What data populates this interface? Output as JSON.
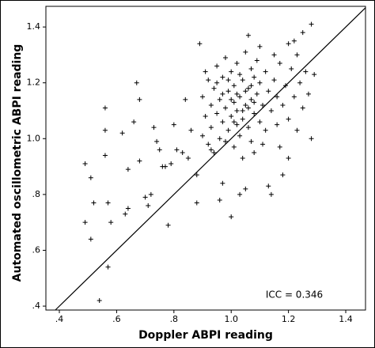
{
  "chart_data": {
    "type": "scatter",
    "x_label": "Doppler ABPI reading",
    "y_label": "Automated oscillometric ABPI reading",
    "annotation": "ICC = 0.346",
    "color": "#000000",
    "identity_line": true,
    "xlim": [
      0.353,
      1.469
    ],
    "ylim": [
      0.386,
      1.474
    ],
    "xticks": [
      {
        "value": 0.4,
        "label": ".4"
      },
      {
        "value": 0.6,
        "label": ".6"
      },
      {
        "value": 0.8,
        "label": ".8"
      },
      {
        "value": 1.0,
        "label": "1.0"
      },
      {
        "value": 1.2,
        "label": "1.2"
      },
      {
        "value": 1.4,
        "label": "1.4"
      }
    ],
    "yticks": [
      {
        "value": 0.4,
        "label": ".4"
      },
      {
        "value": 0.6,
        "label": ".6"
      },
      {
        "value": 0.8,
        "label": ".8"
      },
      {
        "value": 1.0,
        "label": "1.0"
      },
      {
        "value": 1.2,
        "label": "1.2"
      },
      {
        "value": 1.4,
        "label": "1.4"
      }
    ],
    "x": [
      0.49,
      0.49,
      0.51,
      0.51,
      0.52,
      0.54,
      0.56,
      0.56,
      0.56,
      0.57,
      0.57,
      0.58,
      0.62,
      0.63,
      0.64,
      0.64,
      0.66,
      0.67,
      0.68,
      0.68,
      0.7,
      0.71,
      0.72,
      0.73,
      0.74,
      0.75,
      0.76,
      0.77,
      0.78,
      0.79,
      0.8,
      0.81,
      0.83,
      0.84,
      0.85,
      0.86,
      0.88,
      0.88,
      0.89,
      0.9,
      0.9,
      0.91,
      0.92,
      0.92,
      0.93,
      0.93,
      0.94,
      0.94,
      0.95,
      0.95,
      0.96,
      0.96,
      0.96,
      0.97,
      0.97,
      0.97,
      0.98,
      0.98,
      0.98,
      0.99,
      0.99,
      1.0,
      1.0,
      1.0,
      1.01,
      1.01,
      1.01,
      1.02,
      1.02,
      1.02,
      1.03,
      1.03,
      1.03,
      1.04,
      1.04,
      1.04,
      1.05,
      1.05,
      1.05,
      1.06,
      1.06,
      1.06,
      1.07,
      1.07,
      1.07,
      1.08,
      1.08,
      1.08,
      1.09,
      1.09,
      1.1,
      1.1,
      1.1,
      1.11,
      1.11,
      1.12,
      1.12,
      1.13,
      1.13,
      1.14,
      1.14,
      1.15,
      1.15,
      1.16,
      1.16,
      1.17,
      1.17,
      1.18,
      1.18,
      1.19,
      1.2,
      1.2,
      1.2,
      1.21,
      1.22,
      1.22,
      1.23,
      1.23,
      1.24,
      1.25,
      1.25,
      1.26,
      1.27,
      1.28,
      1.28,
      1.29,
      0.91,
      0.93,
      0.95,
      0.97,
      0.99,
      1.0,
      1.01,
      1.02,
      1.03,
      1.04,
      1.05,
      1.06,
      1.07,
      1.08
    ],
    "y": [
      0.91,
      0.7,
      0.64,
      0.86,
      0.77,
      0.42,
      1.11,
      1.03,
      0.94,
      0.54,
      0.77,
      0.7,
      1.02,
      0.73,
      0.75,
      0.89,
      1.06,
      1.2,
      1.14,
      0.92,
      0.79,
      0.76,
      0.8,
      1.04,
      0.99,
      0.96,
      0.9,
      0.9,
      0.69,
      0.91,
      1.05,
      0.96,
      0.95,
      1.14,
      0.93,
      1.03,
      0.87,
      0.77,
      1.34,
      1.01,
      1.15,
      1.08,
      0.98,
      1.21,
      1.12,
      1.04,
      0.95,
      1.18,
      1.26,
      1.09,
      1.0,
      0.78,
      1.14,
      0.84,
      1.22,
      1.06,
      1.29,
      0.99,
      1.11,
      1.17,
      1.03,
      0.72,
      1.24,
      1.08,
      1.13,
      0.97,
      1.19,
      1.05,
      1.27,
      1.1,
      0.8,
      1.15,
      1.01,
      1.21,
      1.07,
      0.93,
      1.12,
      1.31,
      0.82,
      1.37,
      1.18,
      1.04,
      1.25,
      0.99,
      1.14,
      1.09,
      1.22,
      0.95,
      1.16,
      1.28,
      1.33,
      1.06,
      1.2,
      1.12,
      0.98,
      1.24,
      1.03,
      0.83,
      1.17,
      0.8,
      1.1,
      1.3,
      1.21,
      1.05,
      1.15,
      1.27,
      0.97,
      0.87,
      1.12,
      1.19,
      0.93,
      1.34,
      1.07,
      1.25,
      1.35,
      1.15,
      1.3,
      1.03,
      1.2,
      1.38,
      1.11,
      1.24,
      1.16,
      1.0,
      1.41,
      1.23,
      1.24,
      0.96,
      1.2,
      1.16,
      1.21,
      1.14,
      1.06,
      1.16,
      1.23,
      1.1,
      1.17,
      1.11,
      1.19,
      1.13
    ]
  }
}
